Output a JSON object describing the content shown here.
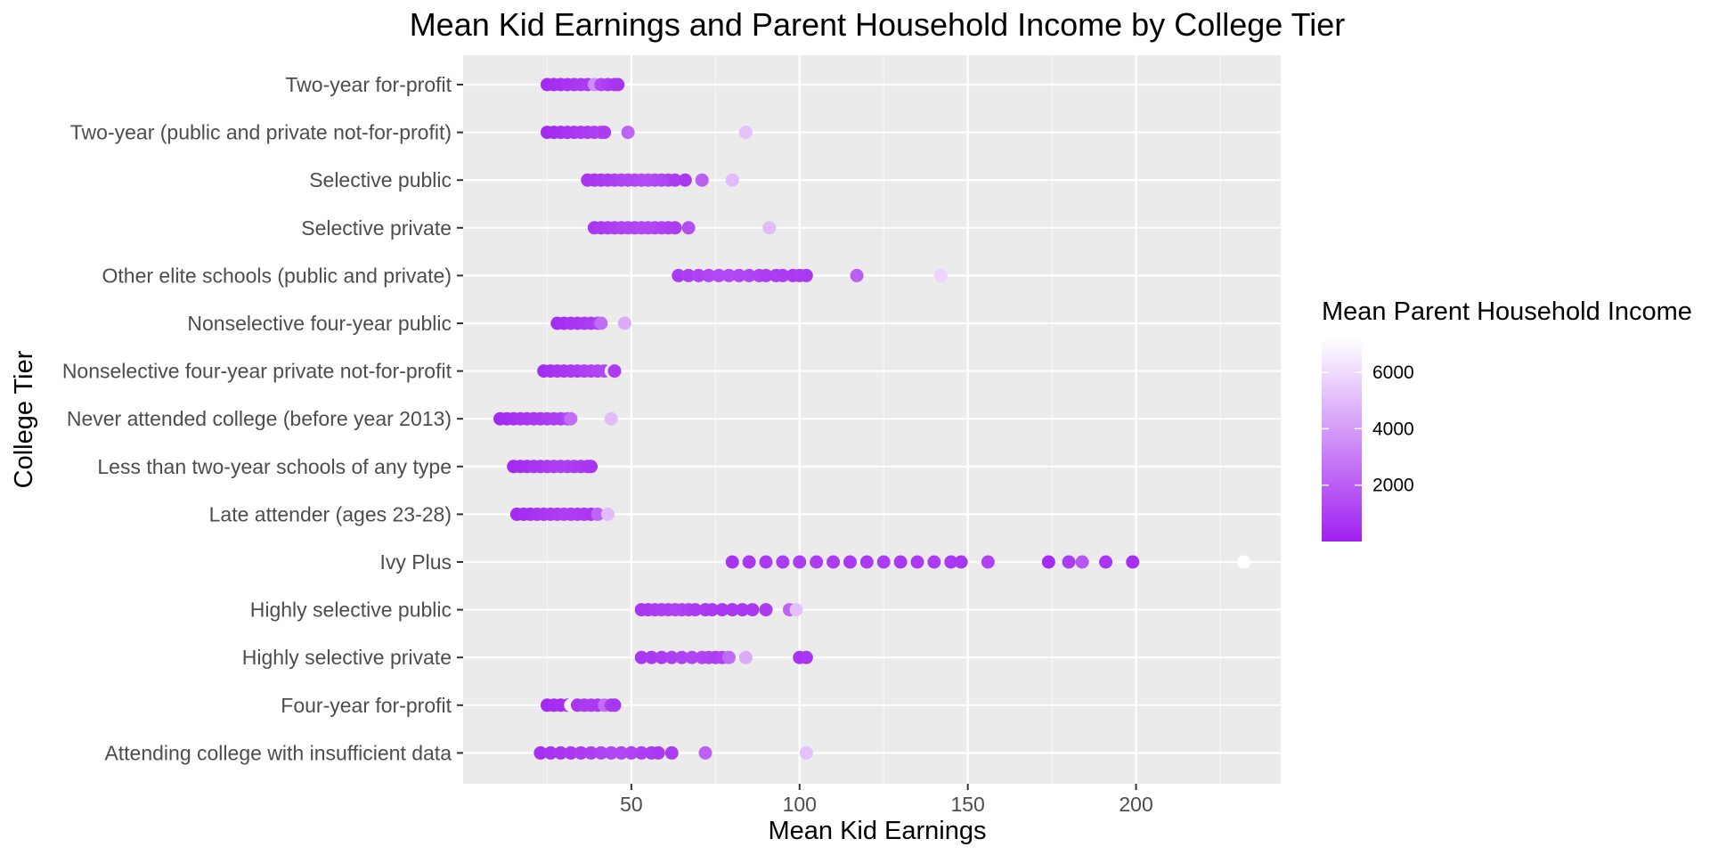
{
  "chart_data": {
    "type": "scatter",
    "title": "Mean Kid Earnings and Parent Household Income by College Tier",
    "xlabel": "Mean Kid Earnings",
    "ylabel": "College Tier",
    "xlim": [
      0,
      243
    ],
    "x_ticks": [
      50,
      100,
      150,
      200
    ],
    "grid": true,
    "legend_position": "right",
    "color_scale": {
      "title": "Mean Parent Household Income",
      "low_color": "#a020f0",
      "high_color": "#ffffff",
      "min": 0,
      "max": 7200,
      "ticks": [
        2000,
        4000,
        6000
      ]
    },
    "categories": [
      "Two-year for-profit",
      "Two-year (public and private not-for-profit)",
      "Selective public",
      "Selective private",
      "Other elite schools (public and private)",
      "Nonselective four-year public",
      "Nonselective four-year private not-for-profit",
      "Never attended college (before year 2013)",
      "Less than two-year schools of any type",
      "Late attender (ages 23-28)",
      "Ivy Plus",
      "Highly selective public",
      "Highly selective private",
      "Four-year for-profit",
      "Attending college with insufficient data"
    ],
    "series": [
      {
        "category": "Two-year for-profit",
        "points": [
          [
            25,
            300
          ],
          [
            27,
            400
          ],
          [
            29,
            500
          ],
          [
            31,
            600
          ],
          [
            33,
            700
          ],
          [
            35,
            800
          ],
          [
            37,
            900
          ],
          [
            39,
            3500
          ],
          [
            41,
            1200
          ],
          [
            43,
            900
          ],
          [
            45,
            700
          ],
          [
            46,
            600
          ]
        ]
      },
      {
        "category": "Two-year (public and private not-for-profit)",
        "points": [
          [
            25,
            300
          ],
          [
            27,
            400
          ],
          [
            29,
            500
          ],
          [
            31,
            600
          ],
          [
            33,
            700
          ],
          [
            35,
            800
          ],
          [
            37,
            900
          ],
          [
            39,
            1000
          ],
          [
            41,
            1100
          ],
          [
            42,
            900
          ],
          [
            49,
            2200
          ],
          [
            84,
            5200
          ]
        ]
      },
      {
        "category": "Selective public",
        "points": [
          [
            37,
            600
          ],
          [
            39,
            700
          ],
          [
            41,
            800
          ],
          [
            43,
            900
          ],
          [
            45,
            1000
          ],
          [
            47,
            1100
          ],
          [
            49,
            1200
          ],
          [
            51,
            1300
          ],
          [
            53,
            1300
          ],
          [
            55,
            1400
          ],
          [
            57,
            1300
          ],
          [
            59,
            1200
          ],
          [
            61,
            1100
          ],
          [
            63,
            900
          ],
          [
            66,
            800
          ],
          [
            71,
            2000
          ],
          [
            80,
            5000
          ]
        ]
      },
      {
        "category": "Selective private",
        "points": [
          [
            39,
            700
          ],
          [
            41,
            800
          ],
          [
            43,
            900
          ],
          [
            45,
            1000
          ],
          [
            47,
            1100
          ],
          [
            49,
            1200
          ],
          [
            51,
            1200
          ],
          [
            53,
            1300
          ],
          [
            55,
            1300
          ],
          [
            57,
            1200
          ],
          [
            59,
            1100
          ],
          [
            61,
            1000
          ],
          [
            63,
            900
          ],
          [
            67,
            1500
          ],
          [
            91,
            5000
          ]
        ]
      },
      {
        "category": "Other elite schools (public and private)",
        "points": [
          [
            64,
            900
          ],
          [
            67,
            1000
          ],
          [
            70,
            1100
          ],
          [
            73,
            1200
          ],
          [
            76,
            1300
          ],
          [
            79,
            1300
          ],
          [
            82,
            1200
          ],
          [
            85,
            1200
          ],
          [
            88,
            1100
          ],
          [
            90,
            1000
          ],
          [
            93,
            900
          ],
          [
            95,
            900
          ],
          [
            98,
            800
          ],
          [
            100,
            900
          ],
          [
            102,
            800
          ],
          [
            117,
            2000
          ],
          [
            142,
            5800
          ]
        ]
      },
      {
        "category": "Nonselective four-year public",
        "points": [
          [
            28,
            400
          ],
          [
            30,
            500
          ],
          [
            32,
            600
          ],
          [
            34,
            700
          ],
          [
            36,
            800
          ],
          [
            38,
            900
          ],
          [
            40,
            1100
          ],
          [
            41,
            2500
          ],
          [
            48,
            4500
          ]
        ]
      },
      {
        "category": "Nonselective four-year private not-for-profit",
        "points": [
          [
            24,
            400
          ],
          [
            26,
            500
          ],
          [
            28,
            600
          ],
          [
            30,
            700
          ],
          [
            32,
            800
          ],
          [
            34,
            900
          ],
          [
            36,
            1000
          ],
          [
            38,
            1100
          ],
          [
            40,
            1200
          ],
          [
            42,
            1300
          ],
          [
            44,
            6500
          ],
          [
            45,
            900
          ]
        ]
      },
      {
        "category": "Never attended college (before year 2013)",
        "points": [
          [
            11,
            300
          ],
          [
            13,
            400
          ],
          [
            15,
            500
          ],
          [
            17,
            600
          ],
          [
            19,
            700
          ],
          [
            21,
            700
          ],
          [
            23,
            800
          ],
          [
            25,
            900
          ],
          [
            27,
            1000
          ],
          [
            29,
            1000
          ],
          [
            31,
            1300
          ],
          [
            32,
            2500
          ],
          [
            44,
            5000
          ]
        ]
      },
      {
        "category": "Less than two-year schools of any type",
        "points": [
          [
            15,
            300
          ],
          [
            17,
            400
          ],
          [
            19,
            500
          ],
          [
            21,
            600
          ],
          [
            23,
            700
          ],
          [
            25,
            800
          ],
          [
            27,
            900
          ],
          [
            29,
            1000
          ],
          [
            31,
            1000
          ],
          [
            33,
            900
          ],
          [
            35,
            800
          ],
          [
            37,
            700
          ],
          [
            38,
            600
          ]
        ]
      },
      {
        "category": "Late attender (ages 23-28)",
        "points": [
          [
            16,
            300
          ],
          [
            18,
            400
          ],
          [
            20,
            500
          ],
          [
            22,
            600
          ],
          [
            24,
            700
          ],
          [
            26,
            800
          ],
          [
            28,
            900
          ],
          [
            30,
            1000
          ],
          [
            32,
            1000
          ],
          [
            34,
            900
          ],
          [
            36,
            800
          ],
          [
            38,
            700
          ],
          [
            40,
            2200
          ],
          [
            43,
            5000
          ]
        ]
      },
      {
        "category": "Ivy Plus",
        "points": [
          [
            80,
            600
          ],
          [
            85,
            700
          ],
          [
            90,
            800
          ],
          [
            95,
            900
          ],
          [
            100,
            900
          ],
          [
            105,
            900
          ],
          [
            110,
            900
          ],
          [
            115,
            800
          ],
          [
            120,
            800
          ],
          [
            125,
            900
          ],
          [
            130,
            800
          ],
          [
            135,
            800
          ],
          [
            140,
            900
          ],
          [
            145,
            800
          ],
          [
            148,
            700
          ],
          [
            156,
            1100
          ],
          [
            174,
            400
          ],
          [
            180,
            900
          ],
          [
            184,
            1800
          ],
          [
            191,
            700
          ],
          [
            199,
            500
          ],
          [
            232,
            7200
          ]
        ]
      },
      {
        "category": "Highly selective public",
        "points": [
          [
            53,
            700
          ],
          [
            55,
            800
          ],
          [
            57,
            900
          ],
          [
            59,
            1000
          ],
          [
            61,
            1000
          ],
          [
            63,
            1100
          ],
          [
            65,
            1100
          ],
          [
            67,
            1000
          ],
          [
            69,
            900
          ],
          [
            72,
            800
          ],
          [
            74,
            800
          ],
          [
            77,
            700
          ],
          [
            80,
            700
          ],
          [
            83,
            700
          ],
          [
            86,
            800
          ],
          [
            90,
            900
          ],
          [
            97,
            2200
          ],
          [
            99,
            5200
          ]
        ]
      },
      {
        "category": "Highly selective private",
        "points": [
          [
            53,
            700
          ],
          [
            56,
            800
          ],
          [
            59,
            900
          ],
          [
            62,
            1000
          ],
          [
            65,
            1100
          ],
          [
            68,
            1200
          ],
          [
            71,
            1200
          ],
          [
            73,
            1100
          ],
          [
            75,
            1000
          ],
          [
            77,
            1100
          ],
          [
            79,
            2400
          ],
          [
            84,
            4500
          ],
          [
            100,
            600
          ],
          [
            102,
            700
          ]
        ]
      },
      {
        "category": "Four-year for-profit",
        "points": [
          [
            25,
            300
          ],
          [
            27,
            400
          ],
          [
            29,
            500
          ],
          [
            31,
            600
          ],
          [
            32,
            6800
          ],
          [
            34,
            700
          ],
          [
            36,
            800
          ],
          [
            38,
            900
          ],
          [
            40,
            800
          ],
          [
            42,
            2500
          ],
          [
            44,
            900
          ],
          [
            45,
            700
          ]
        ]
      },
      {
        "category": "Attending college with insufficient data",
        "points": [
          [
            23,
            500
          ],
          [
            26,
            600
          ],
          [
            29,
            700
          ],
          [
            32,
            800
          ],
          [
            35,
            900
          ],
          [
            38,
            1000
          ],
          [
            41,
            1100
          ],
          [
            44,
            1200
          ],
          [
            47,
            1200
          ],
          [
            50,
            1100
          ],
          [
            53,
            1000
          ],
          [
            56,
            900
          ],
          [
            58,
            800
          ],
          [
            62,
            900
          ],
          [
            72,
            2100
          ],
          [
            102,
            5200
          ]
        ]
      }
    ]
  }
}
